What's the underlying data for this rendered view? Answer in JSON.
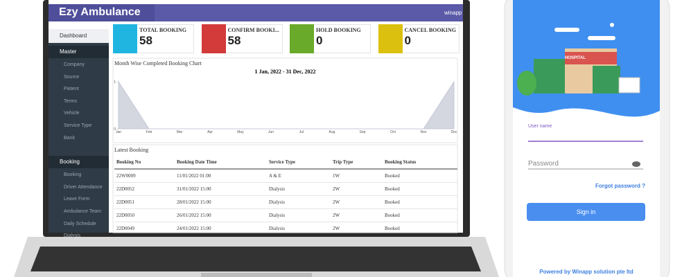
{
  "header": {
    "title": "Ezy Ambulance",
    "user": "winapp"
  },
  "sidebar": {
    "dashboard": "Dashboard",
    "groups": [
      {
        "label": "Master",
        "items": [
          "Company",
          "Source",
          "Patient",
          "Terms",
          "Vehicle",
          "Service Type",
          "Bank"
        ]
      },
      {
        "label": "Booking",
        "items": [
          "Booking",
          "Driver Attendance",
          "Leave Form",
          "Ambulance Team",
          "Daily Schedule",
          "Dialysis"
        ]
      }
    ]
  },
  "cards": [
    {
      "label": "TOTAL BOOKING",
      "value": "58"
    },
    {
      "label": "CONFIRM BOOKI...",
      "value": "58"
    },
    {
      "label": "HOLD BOOKING",
      "value": "0"
    },
    {
      "label": "CANCEL BOOKING",
      "value": "0"
    }
  ],
  "chart": {
    "title": "Month Wise Completed Booking Chart",
    "subtitle": "1 Jan, 2022 - 31 Dec, 2022",
    "categories": [
      "Jan",
      "Feb",
      "Mar",
      "Apr",
      "May",
      "Jun",
      "Jul",
      "Aug",
      "Sep",
      "Oct",
      "Nov",
      "Dec"
    ],
    "values": [
      1,
      0,
      0,
      0,
      0,
      0,
      0,
      0,
      0,
      0,
      0,
      1
    ],
    "ylim": [
      0,
      1
    ],
    "yticks": [
      0,
      1
    ]
  },
  "table": {
    "title": "Latest Booking",
    "columns": [
      "Booking No",
      "Booking Date Time",
      "Service Type",
      "Trip Type",
      "Booking Status"
    ],
    "rows": [
      [
        "22W0009",
        "11/01/2022 01:00",
        "A & E",
        "1W",
        "Booked"
      ],
      [
        "22D0052",
        "31/01/2022 15:00",
        "Dialysis",
        "2W",
        "Booked"
      ],
      [
        "22D0051",
        "28/01/2022 15:00",
        "Dialysis",
        "2W",
        "Booked"
      ],
      [
        "22D0050",
        "26/01/2022 15:00",
        "Dialysis",
        "2W",
        "Booked"
      ],
      [
        "22D0049",
        "24/01/2022 15:00",
        "Dialysis",
        "2W",
        "Booked"
      ]
    ]
  },
  "phone": {
    "sign": "HOSPITAL",
    "username_label": "User name",
    "password_placeholder": "Password",
    "forgot": "Forgot password ?",
    "button": "Sign in",
    "footer": "Powered by Winapp solution pte ltd"
  }
}
